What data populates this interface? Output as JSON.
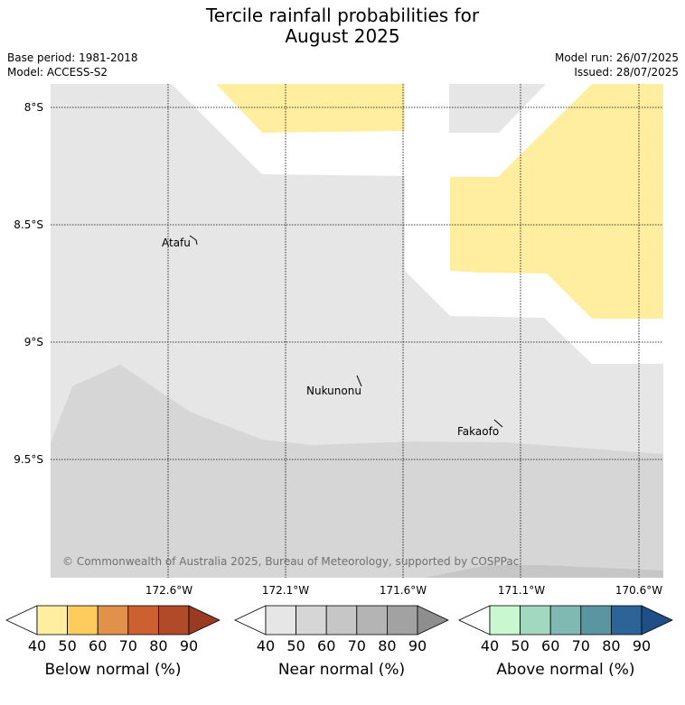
{
  "title_line1": "Tercile rainfall probabilities for",
  "title_line2": "August 2025",
  "base_period": "Base period: 1981-2018",
  "model": "Model: ACCESS-S2",
  "model_run": "Model run: 26/07/2025",
  "issued": "Issued: 28/07/2025",
  "copyright": "© Commonwealth of Australia 2025, Bureau of Meteorology, supported by COSPPac",
  "lat_ticks": [
    "8°S",
    "8.5°S",
    "9°S",
    "9.5°S"
  ],
  "lon_ticks": [
    "172.6°W",
    "172.1°W",
    "171.6°W",
    "171.1°W",
    "170.6°W"
  ],
  "places": [
    {
      "name": "Atafu"
    },
    {
      "name": "Nukunonu"
    },
    {
      "name": "Fakaofo"
    }
  ],
  "colorbars": [
    {
      "label": "Below normal (%)",
      "ticks": [
        "40",
        "50",
        "60",
        "70",
        "80",
        "90"
      ],
      "colors": [
        "#ffffff",
        "#ffeda0",
        "#fecc5c",
        "#e2914a",
        "#cc6030",
        "#b04a28",
        "#9a3a22"
      ]
    },
    {
      "label": "Near normal (%)",
      "ticks": [
        "40",
        "50",
        "60",
        "70",
        "80",
        "90"
      ],
      "colors": [
        "#ffffff",
        "#e6e6e6",
        "#d6d6d6",
        "#c6c6c6",
        "#b4b4b4",
        "#a2a2a2",
        "#8e8e8e"
      ]
    },
    {
      "label": "Above normal (%)",
      "ticks": [
        "40",
        "50",
        "60",
        "70",
        "80",
        "90"
      ],
      "colors": [
        "#ffffff",
        "#c8f7d0",
        "#a2d8bf",
        "#80b8b2",
        "#5a95a2",
        "#2c6498",
        "#1e4f88"
      ]
    }
  ],
  "colors": {
    "below_40_50": "#ffeda0",
    "near_40_50": "#e6e6e6",
    "near_50_60": "#d6d6d6",
    "near_60_70": "#c6c6c6"
  }
}
